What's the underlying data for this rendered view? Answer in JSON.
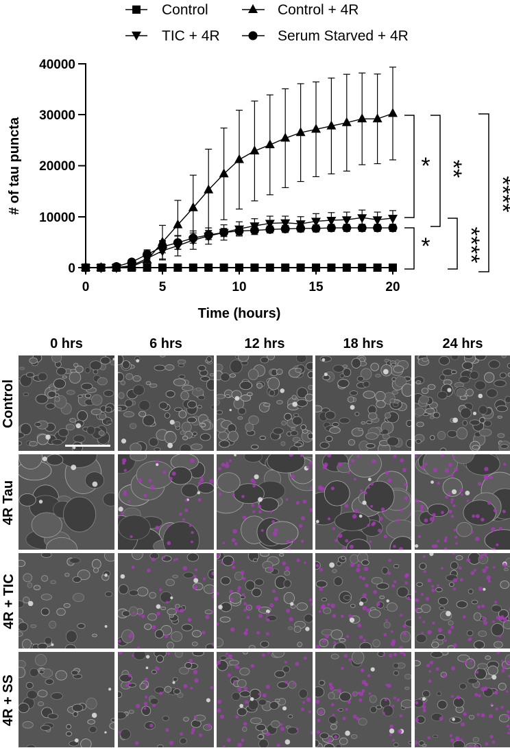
{
  "legend": {
    "items": [
      {
        "label": "Control",
        "marker": "square"
      },
      {
        "label": "Control + 4R",
        "marker": "triangle-up"
      },
      {
        "label": "TIC + 4R",
        "marker": "triangle-down"
      },
      {
        "label": "Serum Starved + 4R",
        "marker": "circle"
      }
    ]
  },
  "axes": {
    "xlabel": "Time (hours)",
    "ylabel": "# of tau puncta",
    "xticks": [
      "0",
      "5",
      "10",
      "15",
      "20"
    ],
    "yticks": [
      "0",
      "10000",
      "20000",
      "30000",
      "40000"
    ]
  },
  "significance": [
    {
      "label": "*",
      "compare": "Control + 4R vs TIC + 4R"
    },
    {
      "label": "**",
      "compare": "Control + 4R vs Serum Starved + 4R"
    },
    {
      "label": "****",
      "compare": "Control + 4R vs Control"
    },
    {
      "label": "*",
      "compare": "TIC + 4R vs Serum Starved + 4R"
    },
    {
      "label": "****",
      "compare": "TIC + 4R vs Control"
    }
  ],
  "chart_data": {
    "type": "line",
    "title": "",
    "xlabel": "Time (hours)",
    "ylabel": "# of tau puncta",
    "xlim": [
      0,
      20
    ],
    "ylim": [
      0,
      40000
    ],
    "grid": false,
    "legend_position": "top",
    "x": [
      0,
      1,
      2,
      3,
      4,
      5,
      6,
      7,
      8,
      9,
      10,
      11,
      12,
      13,
      14,
      15,
      16,
      17,
      18,
      19,
      20
    ],
    "series": [
      {
        "name": "Control",
        "marker": "square",
        "values": [
          0,
          0,
          0,
          0,
          0,
          0,
          0,
          0,
          0,
          0,
          0,
          0,
          0,
          0,
          0,
          0,
          0,
          0,
          0,
          0,
          0
        ],
        "error": [
          0,
          0,
          0,
          0,
          0,
          0,
          0,
          0,
          0,
          0,
          0,
          0,
          0,
          0,
          0,
          0,
          0,
          0,
          0,
          0,
          0
        ]
      },
      {
        "name": "Control + 4R",
        "marker": "triangle-up",
        "values": [
          0,
          0,
          0,
          200,
          1500,
          5000,
          8400,
          11750,
          15250,
          18400,
          21200,
          22900,
          24100,
          25400,
          26500,
          27150,
          27800,
          28450,
          29200,
          29200,
          30250
        ],
        "error": [
          0,
          0,
          0,
          300,
          1800,
          3300,
          4800,
          6400,
          8000,
          9000,
          9700,
          9800,
          9800,
          9700,
          9600,
          9300,
          9400,
          9500,
          9000,
          8800,
          9100
        ]
      },
      {
        "name": "TIC + 4R",
        "marker": "triangle-down",
        "values": [
          0,
          0,
          0,
          400,
          1800,
          3300,
          4300,
          5400,
          6200,
          6900,
          7600,
          8200,
          8700,
          8800,
          8600,
          9100,
          9300,
          9400,
          9800,
          9400,
          9700
        ],
        "error": [
          0,
          0,
          0,
          300,
          1200,
          1800,
          2000,
          1800,
          1600,
          1500,
          1400,
          1400,
          1400,
          1300,
          1400,
          1500,
          1500,
          1500,
          1500,
          1500,
          1500
        ]
      },
      {
        "name": "Serum Starved + 4R",
        "marker": "circle",
        "values": [
          0,
          0,
          200,
          1100,
          2600,
          4100,
          4900,
          5800,
          6400,
          6900,
          7200,
          7300,
          7500,
          7600,
          7700,
          7700,
          7800,
          7800,
          7800,
          7800,
          7800
        ],
        "error": [
          0,
          0,
          150,
          500,
          900,
          1200,
          1300,
          1000,
          900,
          800,
          800,
          800,
          700,
          700,
          700,
          700,
          700,
          700,
          700,
          700,
          700
        ]
      }
    ],
    "annotations": [
      "*",
      "**",
      "****",
      "*",
      "****"
    ]
  },
  "micrographs": {
    "columns": [
      "0 hrs",
      "6 hrs",
      "12 hrs",
      "18 hrs",
      "24 hrs"
    ],
    "rows": [
      "Control",
      "4R Tau",
      "4R + TIC",
      "4R + SS"
    ],
    "puncta_color": "#a43cb4",
    "scale_bar_color": "#ffffff"
  },
  "colors": {
    "line": "#000000",
    "background": "#ffffff",
    "panel_base": "#4a4a4a"
  }
}
